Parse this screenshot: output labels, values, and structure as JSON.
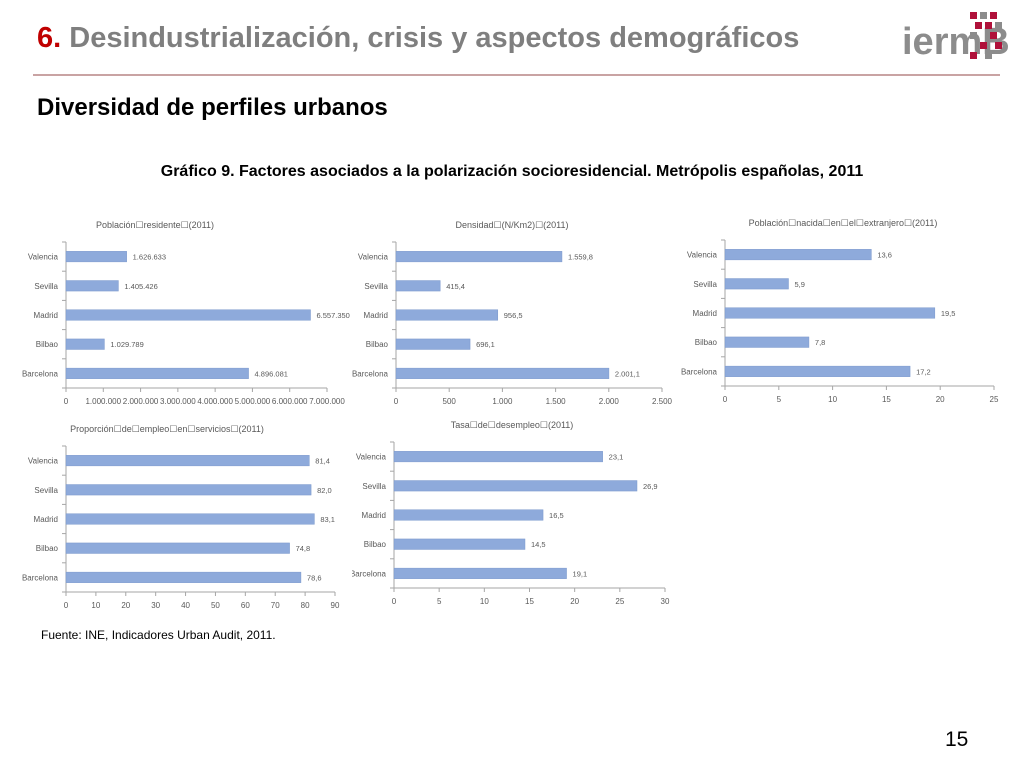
{
  "header": {
    "number": "6.",
    "title": "Desindustrialización, crisis y aspectos demográficos"
  },
  "logo": {
    "text": "iermB",
    "accent_color": "#b0113a",
    "grey_color": "#8c8c8c"
  },
  "subtitle": "Diversidad de perfiles urbanos",
  "figure_title": "Gráfico 9. Factores asociados a la polarización socioresidencial. Metrópolis españolas, 2011",
  "source": "Fuente: INE, Indicadores Urban Audit, 2011.",
  "page_number": "15",
  "colors": {
    "bar": "#8eaadb",
    "bar_edge": "#7b98cc",
    "axis": "#a6a6a6",
    "text": "#595959",
    "header_red": "#c00000",
    "header_grey": "#7f7f7f"
  },
  "chart_data": [
    {
      "id": "poblacion",
      "type": "bar",
      "orientation": "horizontal",
      "title": "Población☐residente☐(2011)",
      "categories": [
        "Valencia",
        "Sevilla",
        "Madrid",
        "Bilbao",
        "Barcelona"
      ],
      "values": [
        1626633,
        1405426,
        6557350,
        1029789,
        4896081
      ],
      "labels": [
        "1.626.633",
        "1.405.426",
        "6.557.350",
        "1.029.789",
        "4.896.081"
      ],
      "xlim": [
        0,
        7000000
      ],
      "ticks": [
        0,
        1000000,
        2000000,
        3000000,
        4000000,
        5000000,
        6000000,
        7000000
      ],
      "tick_labels": [
        "0",
        "1.000.000",
        "2.000.000",
        "3.000.000",
        "4.000.000",
        "5.000.000",
        "6.000.000",
        "7.000.000"
      ]
    },
    {
      "id": "densidad",
      "type": "bar",
      "orientation": "horizontal",
      "title": "Densidad☐(N/Km2)☐(2011)",
      "categories": [
        "Valencia",
        "Sevilla",
        "Madrid",
        "Bilbao",
        "Barcelona"
      ],
      "values": [
        1559.8,
        415.4,
        956.5,
        696.1,
        2001.1
      ],
      "labels": [
        "1.559,8",
        "415,4",
        "956,5",
        "696,1",
        "2.001,1"
      ],
      "xlim": [
        0,
        2500
      ],
      "ticks": [
        0,
        500,
        1000,
        1500,
        2000,
        2500
      ],
      "tick_labels": [
        "0",
        "500",
        "1.000",
        "1.500",
        "2.000",
        "2.500"
      ]
    },
    {
      "id": "extranjero",
      "type": "bar",
      "orientation": "horizontal",
      "title": "Población☐nacida☐en☐el☐extranjero☐(2011)",
      "categories": [
        "Valencia",
        "Sevilla",
        "Madrid",
        "Bilbao",
        "Barcelona"
      ],
      "values": [
        13.6,
        5.9,
        19.5,
        7.8,
        17.2
      ],
      "labels": [
        "13,6",
        "5,9",
        "19,5",
        "7,8",
        "17,2"
      ],
      "xlim": [
        0,
        25
      ],
      "ticks": [
        0,
        5,
        10,
        15,
        20,
        25
      ],
      "tick_labels": [
        "0",
        "5",
        "10",
        "15",
        "20",
        "25"
      ]
    },
    {
      "id": "servicios",
      "type": "bar",
      "orientation": "horizontal",
      "title": "Proporción☐de☐empleo☐en☐servicios☐(2011)",
      "categories": [
        "Valencia",
        "Sevilla",
        "Madrid",
        "Bilbao",
        "Barcelona"
      ],
      "values": [
        81.4,
        82.0,
        83.1,
        74.8,
        78.6
      ],
      "labels": [
        "81,4",
        "82,0",
        "83,1",
        "74,8",
        "78,6"
      ],
      "xlim": [
        0,
        90
      ],
      "ticks": [
        0,
        10,
        20,
        30,
        40,
        50,
        60,
        70,
        80,
        90
      ],
      "tick_labels": [
        "0",
        "10",
        "20",
        "30",
        "40",
        "50",
        "60",
        "70",
        "80",
        "90"
      ]
    },
    {
      "id": "desempleo",
      "type": "bar",
      "orientation": "horizontal",
      "title": "Tasa☐de☐desempleo☐(2011)",
      "categories": [
        "Valencia",
        "Sevilla",
        "Madrid",
        "Bilbao",
        "Barcelona"
      ],
      "values": [
        23.1,
        26.9,
        16.5,
        14.5,
        19.1
      ],
      "labels": [
        "23,1",
        "26,9",
        "16,5",
        "14,5",
        "19,1"
      ],
      "xlim": [
        0,
        30
      ],
      "ticks": [
        0,
        5,
        10,
        15,
        20,
        25,
        30
      ],
      "tick_labels": [
        "0",
        "5",
        "10",
        "15",
        "20",
        "25",
        "30"
      ]
    }
  ]
}
